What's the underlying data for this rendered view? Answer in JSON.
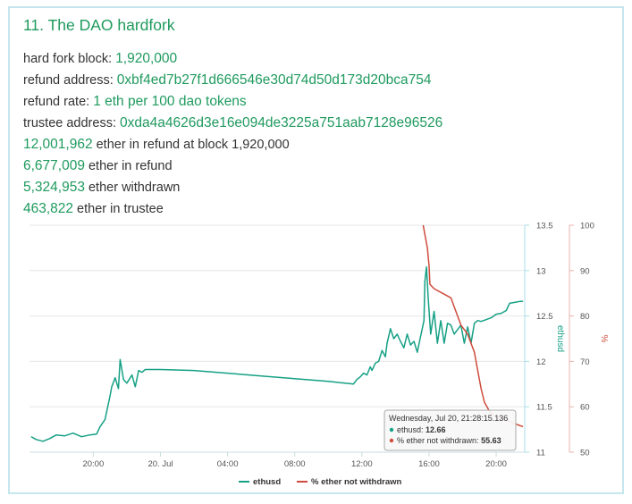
{
  "title": "11. The DAO hardfork",
  "rows": [
    {
      "label": "hard fork block: ",
      "value": "1,920,000",
      "suffix": ""
    },
    {
      "label": "refund address: ",
      "value": "0xbf4ed7b27f1d666546e30d74d50d173d20bca754",
      "suffix": ""
    },
    {
      "label": "refund rate: ",
      "value": "1 eth per 100 dao tokens",
      "suffix": ""
    },
    {
      "label": "trustee address: ",
      "value": "0xda4a4626d3e16e094de3225a751aab7128e96526",
      "suffix": ""
    },
    {
      "label": "",
      "value": "12,001,962",
      "suffix": " ether in refund at block 1,920,000"
    },
    {
      "label": "",
      "value": "6,677,009",
      "suffix": " ether in refund"
    },
    {
      "label": "",
      "value": "5,324,953",
      "suffix": " ether withdrawn"
    },
    {
      "label": "",
      "value": "463,822",
      "suffix": " ether in trustee"
    }
  ],
  "colors": {
    "ethusd": "#16a085",
    "pct": "#cf4b3c",
    "accent": "#1f9a5e",
    "grid": "#e6e6e6"
  },
  "chart_data": {
    "type": "line",
    "x_tick_labels": [
      "20:00",
      "20. Jul",
      "04:00",
      "08:00",
      "12:00",
      "16:00",
      "20:00"
    ],
    "x_tick_hours": [
      20,
      24,
      28,
      32,
      36,
      40,
      44
    ],
    "xlim_hours": [
      16.2,
      45.7
    ],
    "y_left_label": "ethusd",
    "y_left_ticks": [
      "11",
      "11.5",
      "12",
      "12.5",
      "13",
      "13.5"
    ],
    "y_left_lim": [
      11,
      13.5
    ],
    "y_right_label": "%",
    "y_right_ticks": [
      "50",
      "60",
      "70",
      "80",
      "90",
      "100"
    ],
    "y_right_lim": [
      50,
      100
    ],
    "series": [
      {
        "name": "ethusd",
        "axis": "left",
        "points": [
          [
            16.3,
            11.17
          ],
          [
            16.6,
            11.14
          ],
          [
            17.0,
            11.12
          ],
          [
            17.4,
            11.15
          ],
          [
            17.8,
            11.19
          ],
          [
            18.3,
            11.18
          ],
          [
            18.8,
            11.21
          ],
          [
            19.3,
            11.17
          ],
          [
            19.8,
            11.19
          ],
          [
            20.2,
            11.2
          ],
          [
            20.4,
            11.28
          ],
          [
            20.7,
            11.36
          ],
          [
            21.0,
            11.62
          ],
          [
            21.1,
            11.72
          ],
          [
            21.3,
            11.82
          ],
          [
            21.5,
            11.7
          ],
          [
            21.6,
            12.02
          ],
          [
            21.8,
            11.8
          ],
          [
            22.0,
            11.76
          ],
          [
            22.3,
            11.85
          ],
          [
            22.5,
            11.72
          ],
          [
            22.7,
            11.9
          ],
          [
            22.9,
            11.88
          ],
          [
            23.1,
            11.91
          ],
          [
            24.0,
            11.91
          ],
          [
            26.0,
            11.9
          ],
          [
            28.0,
            11.87
          ],
          [
            30.0,
            11.84
          ],
          [
            32.0,
            11.81
          ],
          [
            34.0,
            11.78
          ],
          [
            35.0,
            11.76
          ],
          [
            35.5,
            11.75
          ],
          [
            35.7,
            11.8
          ],
          [
            35.9,
            11.83
          ],
          [
            36.1,
            11.87
          ],
          [
            36.3,
            11.85
          ],
          [
            36.5,
            11.94
          ],
          [
            36.6,
            11.9
          ],
          [
            36.8,
            11.98
          ],
          [
            37.0,
            12.0
          ],
          [
            37.2,
            12.12
          ],
          [
            37.4,
            12.05
          ],
          [
            37.5,
            12.2
          ],
          [
            37.7,
            12.36
          ],
          [
            37.9,
            12.25
          ],
          [
            38.1,
            12.3
          ],
          [
            38.3,
            12.22
          ],
          [
            38.5,
            12.15
          ],
          [
            38.7,
            12.3
          ],
          [
            38.9,
            12.18
          ],
          [
            39.1,
            12.22
          ],
          [
            39.3,
            12.1
          ],
          [
            39.5,
            12.28
          ],
          [
            39.7,
            12.45
          ],
          [
            39.75,
            12.88
          ],
          [
            39.85,
            13.04
          ],
          [
            39.95,
            12.7
          ],
          [
            40.1,
            12.3
          ],
          [
            40.3,
            12.55
          ],
          [
            40.5,
            12.2
          ],
          [
            40.7,
            12.45
          ],
          [
            40.9,
            12.2
          ],
          [
            41.1,
            12.42
          ],
          [
            41.3,
            12.4
          ],
          [
            41.5,
            12.3
          ],
          [
            41.7,
            12.35
          ],
          [
            41.9,
            12.4
          ],
          [
            42.1,
            12.2
          ],
          [
            42.3,
            12.38
          ],
          [
            42.5,
            12.2
          ],
          [
            42.7,
            12.42
          ],
          [
            42.9,
            12.45
          ],
          [
            43.1,
            12.44
          ],
          [
            43.4,
            12.46
          ],
          [
            43.7,
            12.48
          ],
          [
            44.0,
            12.52
          ],
          [
            44.3,
            12.53
          ],
          [
            44.6,
            12.56
          ],
          [
            44.8,
            12.64
          ],
          [
            45.1,
            12.65
          ],
          [
            45.4,
            12.66
          ],
          [
            45.6,
            12.66
          ]
        ]
      },
      {
        "name": "% ether not withdrawn",
        "axis": "right",
        "points": [
          [
            39.65,
            100
          ],
          [
            39.8,
            97
          ],
          [
            39.9,
            95
          ],
          [
            40.0,
            91
          ],
          [
            40.05,
            87
          ],
          [
            40.3,
            86
          ],
          [
            40.8,
            85
          ],
          [
            41.3,
            84
          ],
          [
            41.6,
            81
          ],
          [
            41.7,
            80
          ],
          [
            41.9,
            78
          ],
          [
            42.1,
            77
          ],
          [
            42.3,
            76
          ],
          [
            42.5,
            74
          ],
          [
            42.7,
            72
          ],
          [
            42.9,
            68
          ],
          [
            43.1,
            64
          ],
          [
            43.3,
            61
          ],
          [
            43.6,
            59
          ],
          [
            43.9,
            58
          ],
          [
            44.2,
            57.5
          ],
          [
            44.6,
            57
          ],
          [
            45.0,
            56.5
          ],
          [
            45.3,
            56
          ],
          [
            45.6,
            55.63
          ]
        ]
      }
    ],
    "legend": [
      "ethusd",
      "% ether not withdrawn"
    ],
    "legend_position": "bottom",
    "grid": true,
    "tooltip": {
      "header": "Wednesday, Jul 20, 21:28:15.136",
      "rows": [
        {
          "label": "ethusd: ",
          "value": "12.66"
        },
        {
          "label": "% ether not withdrawn: ",
          "value": "55.63"
        }
      ]
    }
  }
}
